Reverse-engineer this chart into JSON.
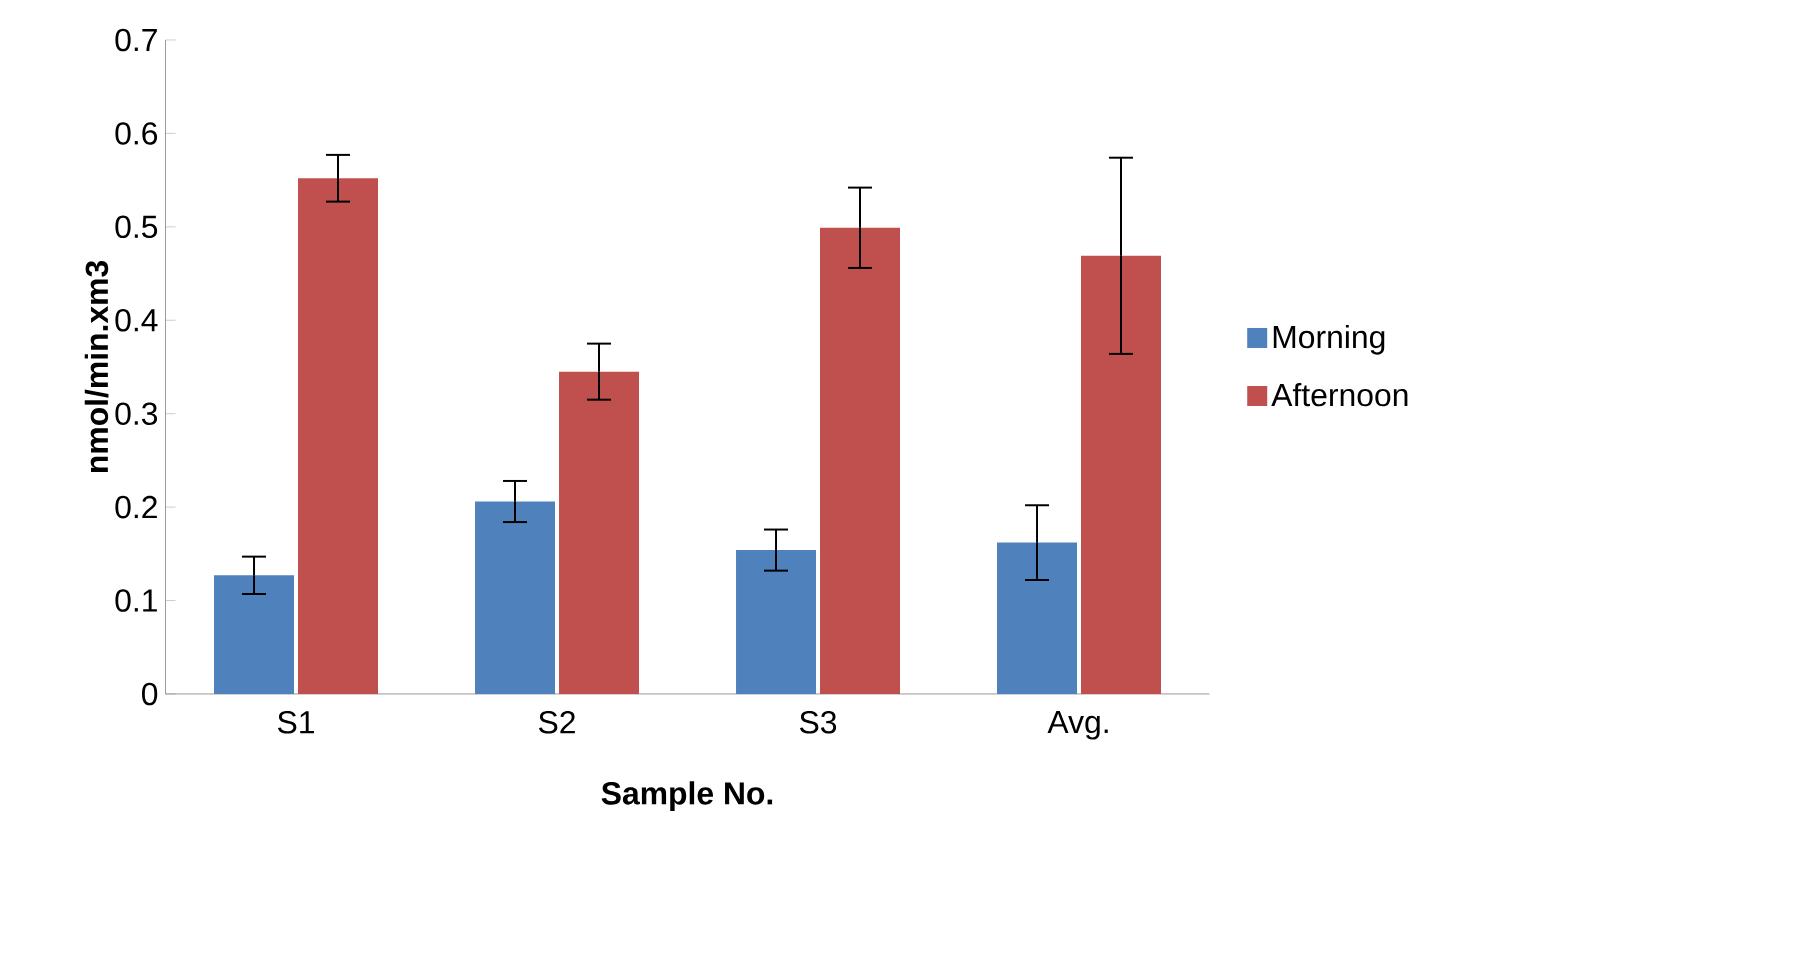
{
  "chart_data": {
    "type": "bar",
    "xlabel": "Sample No.",
    "ylabel": "nmol/min.xm3",
    "categories": [
      "S1",
      "S2",
      "S3",
      "Avg."
    ],
    "series": [
      {
        "name": "Morning",
        "color": "#4f81bd",
        "values": [
          0.127,
          0.206,
          0.154,
          0.162
        ],
        "errors": [
          0.02,
          0.022,
          0.022,
          0.04
        ]
      },
      {
        "name": "Afternoon",
        "color": "#c0504d",
        "values": [
          0.552,
          0.345,
          0.499,
          0.469
        ],
        "errors": [
          0.025,
          0.03,
          0.043,
          0.105
        ]
      }
    ],
    "ylim": [
      0,
      0.7
    ],
    "yticks": [
      0,
      0.1,
      0.2,
      0.3,
      0.4,
      0.5,
      0.6,
      0.7
    ],
    "grid": false,
    "legend": "right"
  }
}
